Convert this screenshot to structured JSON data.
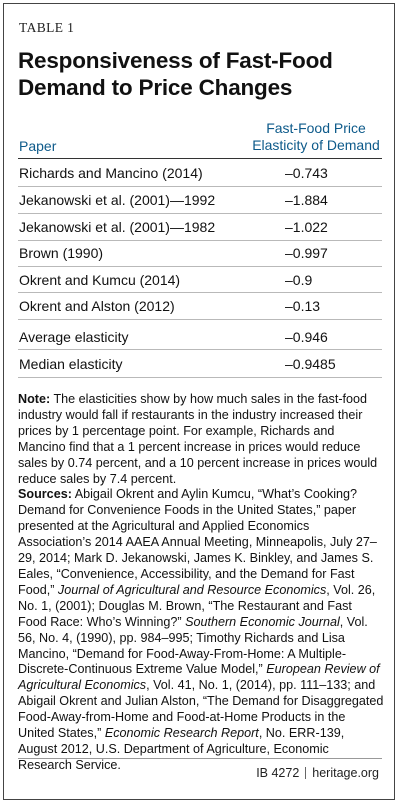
{
  "table_label": "TABLE 1",
  "title_line1": "Responsiveness of Fast-Food",
  "title_line2": "Demand to Price Changes",
  "headers": {
    "paper": "Paper",
    "elasticity_line1": "Fast-Food Price",
    "elasticity_line2": "Elasticity of Demand"
  },
  "rows": [
    {
      "paper": "Richards and Mancino (2014)",
      "elasticity": "–0.743"
    },
    {
      "paper": "Jekanowski et al. (2001)—1992",
      "elasticity": "–1.884"
    },
    {
      "paper": "Jekanowski et al. (2001)—1982",
      "elasticity": "–1.022"
    },
    {
      "paper": "Brown (1990)",
      "elasticity": "–0.997"
    },
    {
      "paper": "Okrent and Kumcu (2014)",
      "elasticity": "–0.9"
    },
    {
      "paper": "Okrent and Alston (2012)",
      "elasticity": "–0.13"
    }
  ],
  "summary": [
    {
      "label": "Average elasticity",
      "value": "–0.946"
    },
    {
      "label": "Median elasticity",
      "value": "–0.9485"
    }
  ],
  "note": {
    "label": "Note:",
    "text": " The elasticities show by how much sales in the fast-food industry would fall if restaurants in the industry increased their prices by 1 percentage point. For example, Richards and Mancino find that a 1 percent increase in prices would reduce sales by 0.74 percent, and a 10 percent increase in prices would reduce sales by 7.4 percent."
  },
  "sources": {
    "label": "Sources:",
    "parts": [
      {
        "t": " Abigail Okrent and Aylin Kumcu, “What’s Cooking? Demand for Convenience Foods in the United States,” paper presented at the Agricultural and Applied Economics Association’s 2014 AAEA Annual Meeting, Minneapolis, July 27–29, 2014; Mark D. Jekanowski, James K. Binkley, and James S. Eales, “Convenience, Accessibility, and the Demand for Fast Food,” ",
        "i": false
      },
      {
        "t": "Journal of Agricultural and Resource Economics",
        "i": true
      },
      {
        "t": ", Vol. 26, No. 1, (2001); Douglas M. Brown, “The Restaurant and Fast Food Race: Who’s Winning?” ",
        "i": false
      },
      {
        "t": "Southern Economic Journal",
        "i": true
      },
      {
        "t": ", Vol. 56, No. 4, (1990), pp. 984–995; Timothy Richards and Lisa Mancino, “Demand for Food-Away-From-Home: A Multiple-Discrete-Continuous Extreme Value Model,” ",
        "i": false
      },
      {
        "t": "European Review of Agricultural Economics",
        "i": true
      },
      {
        "t": ", Vol. 41, No. 1, (2014), pp. 111–133; and Abigail Okrent and Julian Alston, “The Demand for Disaggregated Food-Away-from-Home and Food-at-Home Products in the United States,” ",
        "i": false
      },
      {
        "t": "Economic Research Report",
        "i": true
      },
      {
        "t": ", No. ERR-139, August 2012, U.S. Department of Agriculture, Economic Research Service.",
        "i": false
      }
    ]
  },
  "footer": {
    "code": "IB 4272",
    "site": "heritage.org"
  }
}
